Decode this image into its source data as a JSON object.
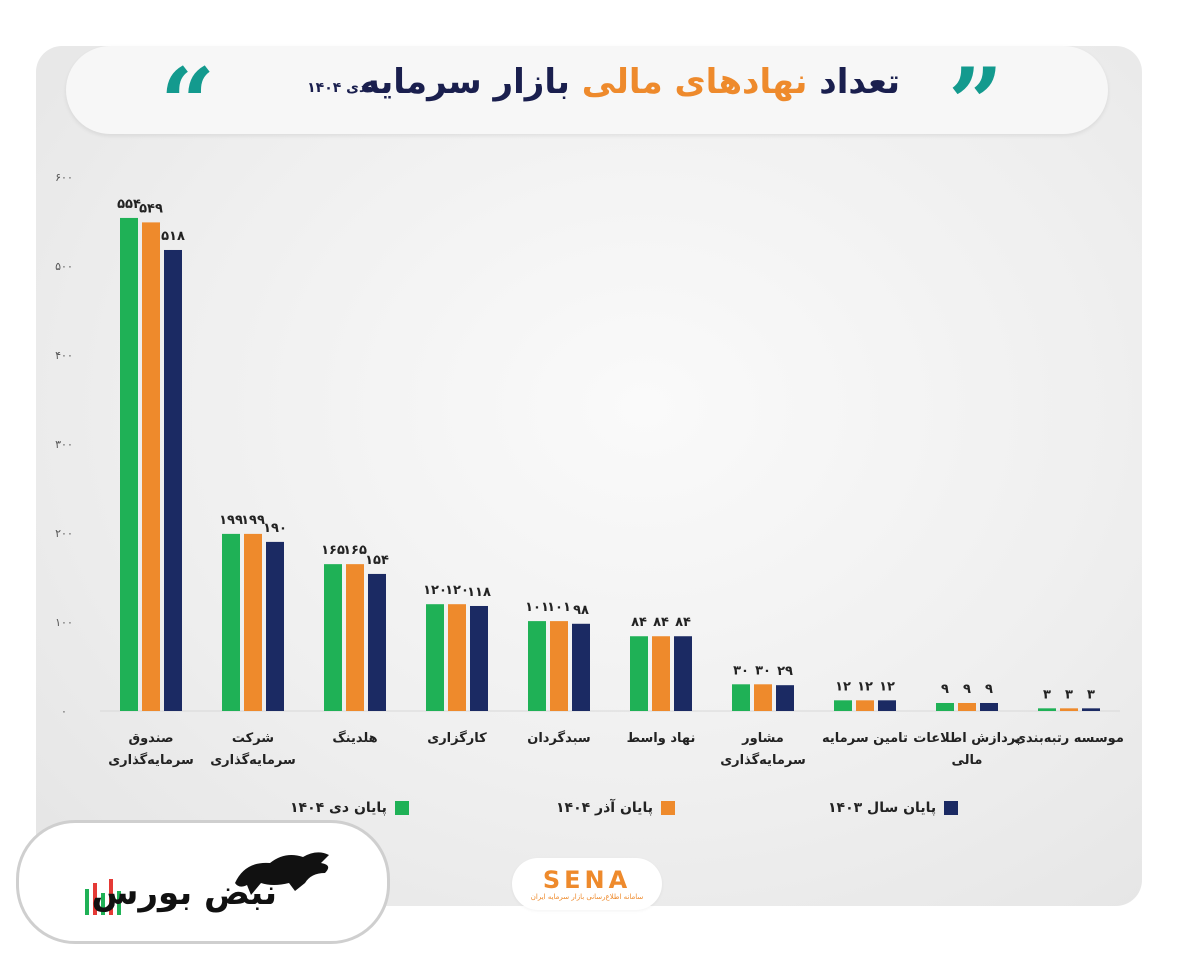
{
  "header": {
    "title_part1": "تعداد",
    "title_part2": "نهادهای مالی",
    "title_part3": "بازار سرمایه",
    "subtitle": "-دی ۱۴۰۴",
    "quote_left": "“",
    "quote_right": "”"
  },
  "colors": {
    "series_1": "#1fb156",
    "series_2": "#ee8a2c",
    "series_3": "#1b2a63",
    "title_accent": "#ee8a2c",
    "quote": "#139a8e"
  },
  "chart_data": {
    "type": "bar",
    "title": "تعداد نهادهای مالی بازار سرمایه",
    "subtitle": "-دی ۱۴۰۴",
    "xlabel": "",
    "ylabel": "",
    "ylim": [
      0,
      600
    ],
    "yticks": [
      0,
      100,
      200,
      300,
      400,
      500,
      600
    ],
    "ytick_labels": [
      "۰",
      "۱۰۰",
      "۲۰۰",
      "۳۰۰",
      "۴۰۰",
      "۵۰۰",
      "۶۰۰"
    ],
    "grid": false,
    "legend_position": "bottom",
    "categories": [
      [
        "صندوق",
        "سرمایه‌گذاری"
      ],
      [
        "شرکت",
        "سرمایه‌گذاری"
      ],
      [
        "هلدینگ"
      ],
      [
        "کارگزاری"
      ],
      [
        "سبدگردان"
      ],
      [
        "نهاد واسط"
      ],
      [
        "مشاور",
        "سرمایه‌گذاری"
      ],
      [
        "تامین سرمایه"
      ],
      [
        "پردازش اطلاعات",
        "مالی"
      ],
      [
        "موسسه رتبه‌بندی"
      ]
    ],
    "series": [
      {
        "name": "پایان دی ۱۴۰۴",
        "values": [
          554,
          199,
          165,
          120,
          101,
          84,
          30,
          12,
          9,
          3
        ],
        "labels": [
          "۵۵۴",
          "۱۹۹",
          "۱۶۵",
          "۱۲۰",
          "۱۰۱",
          "۸۴",
          "۳۰",
          "۱۲",
          "۹",
          "۳"
        ]
      },
      {
        "name": "پایان آذر ۱۴۰۴",
        "values": [
          549,
          199,
          165,
          120,
          101,
          84,
          30,
          12,
          9,
          3
        ],
        "labels": [
          "۵۴۹",
          "۱۹۹",
          "۱۶۵",
          "۱۲۰",
          "۱۰۱",
          "۸۴",
          "۳۰",
          "۱۲",
          "۹",
          "۳"
        ]
      },
      {
        "name": "پایان سال ۱۴۰۳",
        "values": [
          518,
          190,
          154,
          118,
          98,
          84,
          29,
          12,
          9,
          3
        ],
        "labels": [
          "۵۱۸",
          "۱۹۰",
          "۱۵۴",
          "۱۱۸",
          "۹۸",
          "۸۴",
          "۲۹",
          "۱۲",
          "۹",
          "۳"
        ]
      }
    ]
  },
  "source_logo": {
    "text": "SENA",
    "tagline": "سامانه اطلاع‌رسانی بازار سرمایه ایران"
  },
  "watermark": {
    "text": "نبض بورس"
  }
}
